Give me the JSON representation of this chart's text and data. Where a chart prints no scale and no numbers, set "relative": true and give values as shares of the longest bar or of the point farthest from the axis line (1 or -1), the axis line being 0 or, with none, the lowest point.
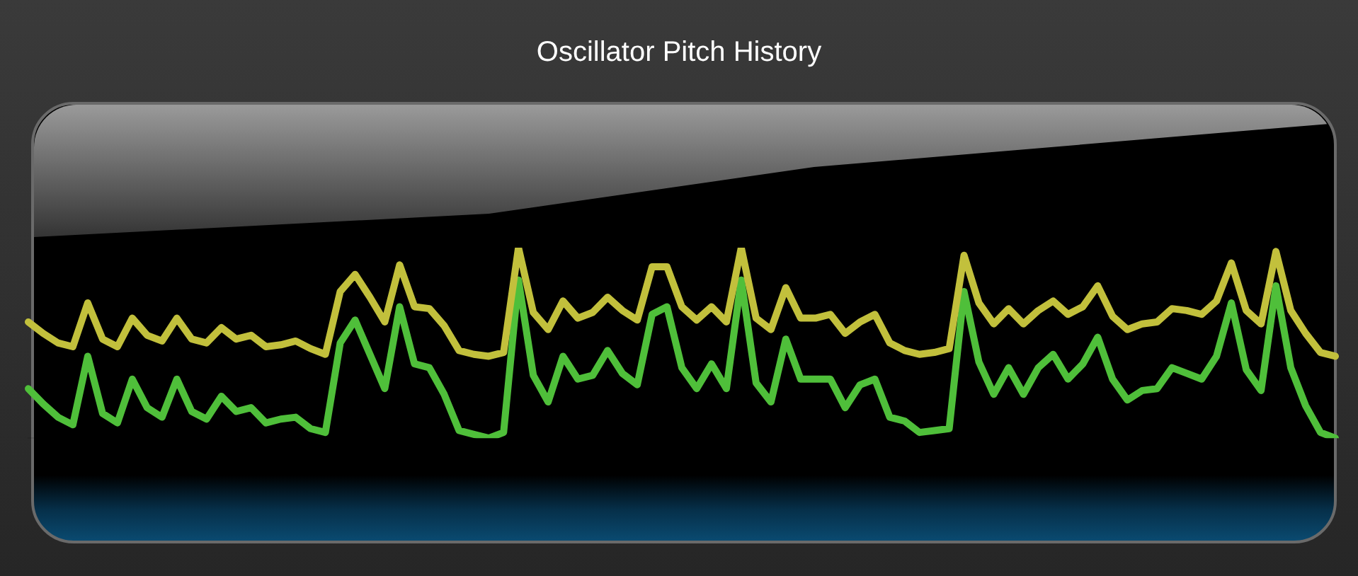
{
  "chart_data": {
    "type": "line",
    "title": "Oscillator Pitch History",
    "relative": true,
    "legend": false,
    "grid": false,
    "marker": "none",
    "line_style": "solid",
    "categories": [
      null,
      null,
      null,
      null,
      null,
      null,
      null,
      null,
      null,
      null,
      null,
      null,
      null,
      null,
      null,
      null,
      null,
      null,
      null,
      null,
      null,
      null,
      null,
      null,
      null,
      null,
      null,
      null,
      null,
      null,
      null,
      null,
      null,
      null,
      null,
      null,
      null,
      null,
      null,
      null,
      null,
      null,
      null,
      null,
      null,
      null,
      null,
      null,
      null,
      null,
      null,
      null,
      null,
      null,
      null,
      null,
      null,
      null,
      null,
      null,
      null,
      null,
      null,
      null,
      null,
      null,
      null,
      null,
      null,
      null,
      null,
      null,
      null,
      null,
      null,
      null,
      null,
      null,
      null,
      null,
      null,
      null,
      null,
      null,
      null,
      null,
      null,
      null,
      null
    ],
    "series": [
      {
        "color": "#c2c03c",
        "values": [
          0.61,
          0.55,
          0.5,
          0.48,
          0.71,
          0.52,
          0.48,
          0.63,
          0.54,
          0.51,
          0.63,
          0.52,
          0.5,
          0.58,
          0.52,
          0.54,
          0.48,
          0.49,
          0.51,
          0.47,
          0.44,
          0.77,
          0.86,
          0.74,
          0.61,
          0.91,
          0.69,
          0.68,
          0.59,
          0.46,
          0.44,
          0.43,
          0.45,
          1,
          0.66,
          0.57,
          0.72,
          0.63,
          0.66,
          0.74,
          0.67,
          0.62,
          0.9,
          0.9,
          0.69,
          0.62,
          0.69,
          0.61,
          1,
          0.63,
          0.57,
          0.79,
          0.63,
          0.63,
          0.65,
          0.55,
          0.61,
          0.65,
          0.5,
          0.46,
          0.44,
          0.45,
          0.47,
          0.96,
          0.71,
          0.6,
          0.68,
          0.6,
          0.67,
          0.72,
          0.65,
          0.69,
          0.8,
          0.64,
          0.57,
          0.6,
          0.61,
          0.68,
          0.67,
          0.65,
          0.72,
          0.92,
          0.67,
          0.6,
          0.98,
          0.67,
          0.55,
          0.45,
          0.43
        ]
      },
      {
        "color": "#4fbf3a",
        "values": [
          0.26,
          0.18,
          0.11,
          0.07,
          0.43,
          0.13,
          0.08,
          0.31,
          0.16,
          0.11,
          0.31,
          0.14,
          0.1,
          0.22,
          0.14,
          0.16,
          0.08,
          0.1,
          0.11,
          0.05,
          0.03,
          0.5,
          0.62,
          0.44,
          0.26,
          0.69,
          0.39,
          0.37,
          0.23,
          0.04,
          0.02,
          0,
          0.03,
          0.83,
          0.33,
          0.19,
          0.43,
          0.31,
          0.33,
          0.46,
          0.34,
          0.28,
          0.65,
          0.69,
          0.37,
          0.26,
          0.39,
          0.26,
          0.83,
          0.29,
          0.19,
          0.52,
          0.31,
          0.31,
          0.31,
          0.16,
          0.28,
          0.31,
          0.11,
          0.09,
          0.03,
          0.04,
          0.05,
          0.77,
          0.4,
          0.23,
          0.37,
          0.23,
          0.37,
          0.44,
          0.31,
          0.39,
          0.53,
          0.31,
          0.2,
          0.25,
          0.26,
          0.37,
          0.34,
          0.31,
          0.43,
          0.71,
          0.36,
          0.25,
          0.8,
          0.37,
          0.17,
          0.03,
          0
        ]
      }
    ]
  }
}
